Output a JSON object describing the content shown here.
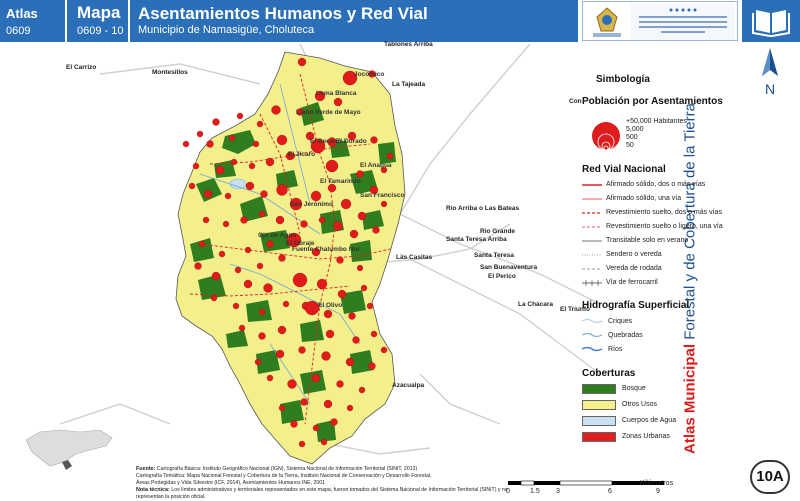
{
  "header": {
    "atlas_label": "Atlas",
    "atlas_number": "0609",
    "mapa_label": "Mapa",
    "mapa_number": "0609 - 10",
    "title": "Asentamientos Humanos y Red Vial",
    "subtitle": "Municipio de Namasigüe, Choluteca"
  },
  "side": {
    "north_letter": "N",
    "title_bold": "Atlas Municipal",
    "title_rest": " Forestal y de Cobertura de la Tierra",
    "badge": "10A"
  },
  "external_places": [
    {
      "name": "Tablones Arriba"
    },
    {
      "name": "El Carrizo"
    },
    {
      "name": "Montesillos"
    },
    {
      "name": "La Tajeada"
    },
    {
      "name": "Rio Arriba o Las Bateas"
    },
    {
      "name": "Rio Grande"
    },
    {
      "name": "Santa Teresa Arriba"
    },
    {
      "name": "Santa Teresa"
    },
    {
      "name": "Las Casitas"
    },
    {
      "name": "San Buenaventura"
    },
    {
      "name": "El Perico"
    },
    {
      "name": "La Chácara"
    },
    {
      "name": "El Triunfo"
    },
    {
      "name": "Azacualpa"
    },
    {
      "name": "Con"
    }
  ],
  "settlements": [
    {
      "name": "Jocomico"
    },
    {
      "name": "Loma Blanca"
    },
    {
      "name": "Llano Verde de Mayo"
    },
    {
      "name": "El Decano"
    },
    {
      "name": "El Dorado"
    },
    {
      "name": "San Jerónimo"
    },
    {
      "name": "El Obraje"
    },
    {
      "name": "Fuente Chalumbo Nor"
    },
    {
      "name": "El Anagua"
    },
    {
      "name": "El Tamarindo"
    },
    {
      "name": "San Francisco"
    },
    {
      "name": "Ojo de Agua"
    },
    {
      "name": "El Olivo"
    },
    {
      "name": "El Jícaro"
    }
  ],
  "legend": {
    "title": "Simbología",
    "population_title": "Población por Asentamientos",
    "population_sizes": [
      "+50,000 Habitantes",
      "5,000",
      "500",
      "50"
    ],
    "road_title": "Red Vial Nacional",
    "roads": [
      {
        "label": "Afirmado sólido, dos o más vías",
        "color": "#e02020",
        "style": "solid"
      },
      {
        "label": "Afirmado sólido, una vía",
        "color": "#e86060",
        "style": "solid"
      },
      {
        "label": "Revestimiento suelto, dos o más vías",
        "color": "#e02020",
        "style": "dash"
      },
      {
        "label": "Revestimiento suelto o ligero, una vía",
        "color": "#e86060",
        "style": "dash"
      },
      {
        "label": "Transitable solo en verano",
        "color": "#bbbbbb",
        "style": "solid"
      },
      {
        "label": "Sendero o vereda",
        "color": "#999999",
        "style": "dot"
      },
      {
        "label": "Vereda de rodada",
        "color": "#999999",
        "style": "dash"
      },
      {
        "label": "Vía de ferrocarril",
        "color": "#666666",
        "style": "rail"
      }
    ],
    "hydro_title": "Hidrografía Superficial",
    "hydro": [
      {
        "label": "Criques",
        "color": "#a8c8e8"
      },
      {
        "label": "Quebradas",
        "color": "#7fb0dc"
      },
      {
        "label": "Ríos",
        "color": "#4a82c4"
      }
    ],
    "cover_title": "Coberturas",
    "covers": [
      {
        "label": "Bosque",
        "color": "#2f7d1e"
      },
      {
        "label": "Otros Usos",
        "color": "#f3f08c"
      },
      {
        "label": "Cuerpos de Agua",
        "color": "#c9dff2"
      },
      {
        "label": "Zonas Urbanas",
        "color": "#e02020"
      }
    ]
  },
  "footer": {
    "source_label": "Fuente:",
    "source_lines": [
      "Cartografía Básica: Instituto Geográfico Nacional (IGN), Sistema Nacional de Información Territorial (SINIT, 2013)",
      "Cartografía Temática: Mapa Nacional Forestal y Cobertura de la Tierra, Instituto Nacional de Conservación y Desarrollo Forestal,",
      "Áreas Protegidas y Vida Silvestre (ICF, 2014), Asentamientos Humanos INE, 2001"
    ],
    "notes_label": "Nota técnica:",
    "notes": "Los límites administrativos y territoriales representados en este mapa, fueron tomados del Sistema Nacional de Información Territorial (SINIT) y no representan la posición oficial.",
    "scale_ticks": [
      "0",
      "1.5",
      "3",
      "6",
      "9"
    ],
    "scale_unit": "Kilómetros"
  },
  "logos": {
    "gov_text": "GOBIERNO DE LA REPÚBLICA DE HONDURAS",
    "inst_text": "INSTITUTO NACIONAL DE CONSERVACIÓN Y DESARROLLO FORESTAL, ÁREAS PROTEGIDAS Y VIDA SILVESTRE ICF"
  },
  "colors": {
    "header_blue": "#2a6fb8",
    "land_yellow": "#f3f08c",
    "forest_green": "#2f7d1e",
    "settlement_red": "#e01b1b"
  }
}
